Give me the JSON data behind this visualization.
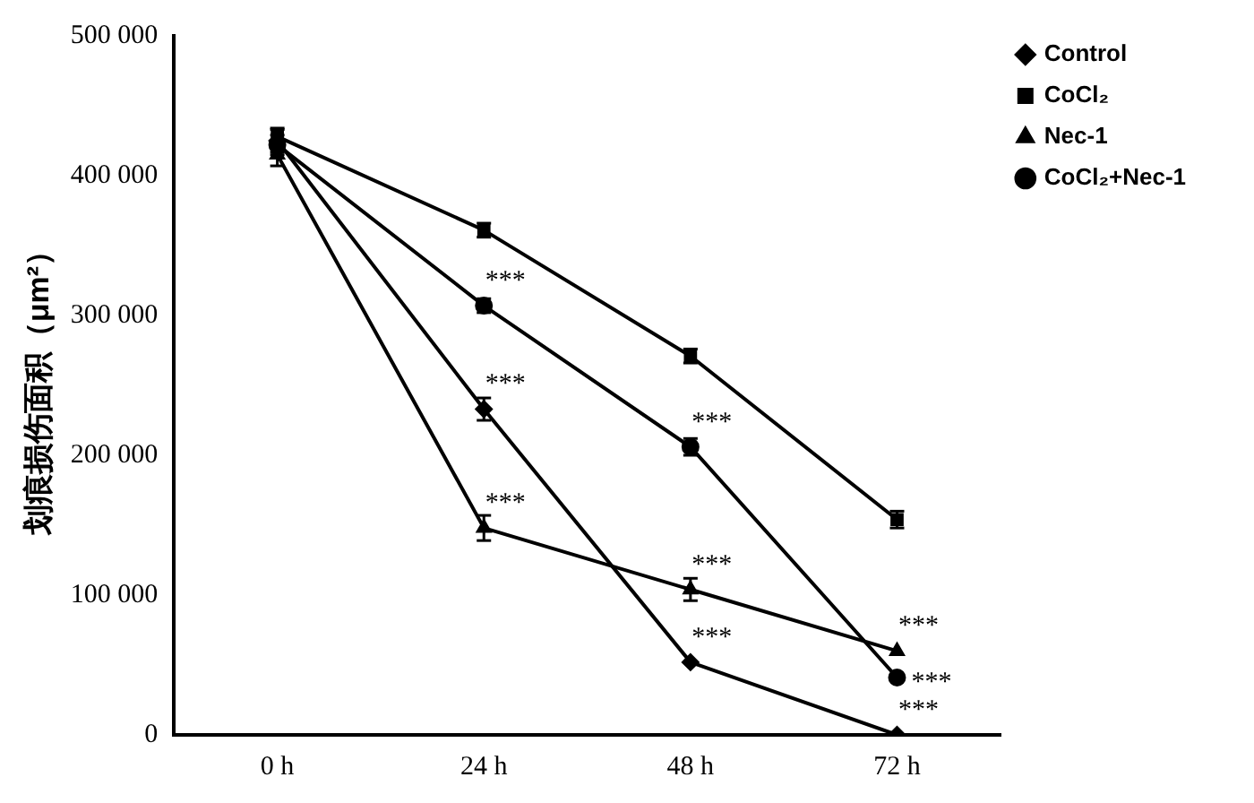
{
  "chart_data": {
    "type": "line",
    "ylabel": "划痕损伤面积（μm²）",
    "categories": [
      "0 h",
      "24 h",
      "48 h",
      "72 h"
    ],
    "series": [
      {
        "name": "Control",
        "color": "#000000",
        "marker": "diamond",
        "values": [
          425000,
          233000,
          52000,
          0
        ],
        "errors": [
          8000,
          8000,
          null,
          null
        ]
      },
      {
        "name": "CoCl₂",
        "color": "#000000",
        "marker": "square",
        "values": [
          428000,
          361000,
          271000,
          154000
        ],
        "errors": [
          6000,
          5000,
          5000,
          6000
        ]
      },
      {
        "name": "Nec-1",
        "color": "#000000",
        "marker": "triangle",
        "values": [
          415000,
          148000,
          104000,
          60000
        ],
        "errors": [
          8000,
          9000,
          8000,
          null
        ]
      },
      {
        "name": "CoCl₂+Nec-1",
        "color": "#000000",
        "marker": "circle",
        "values": [
          422000,
          307000,
          206000,
          41000
        ],
        "errors": [
          7000,
          5000,
          6000,
          null
        ]
      }
    ],
    "ylim": [
      0,
      500000
    ],
    "yticks": [
      {
        "value": 0,
        "label": "0"
      },
      {
        "value": 100000,
        "label": "100 000"
      },
      {
        "value": 200000,
        "label": "200 000"
      },
      {
        "value": 300000,
        "label": "300 000"
      },
      {
        "value": 400000,
        "label": "400 000"
      },
      {
        "value": 500000,
        "label": "500 000"
      }
    ],
    "legend": "top right",
    "line_style": "solid",
    "annotations": [
      {
        "text": "***",
        "x": "24 h",
        "y": 307000
      },
      {
        "text": "***",
        "x": "24 h",
        "y": 233000
      },
      {
        "text": "***",
        "x": "24 h",
        "y": 148000
      },
      {
        "text": "***",
        "x": "48 h",
        "y": 206000
      },
      {
        "text": "***",
        "x": "48 h",
        "y": 104000
      },
      {
        "text": "***",
        "x": "48 h",
        "y": 52000
      },
      {
        "text": "***",
        "x": "72 h",
        "y": 60000
      },
      {
        "text": "***",
        "x": "72 h",
        "y": 41000
      },
      {
        "text": "***",
        "x": "72 h",
        "y": 0
      }
    ]
  }
}
